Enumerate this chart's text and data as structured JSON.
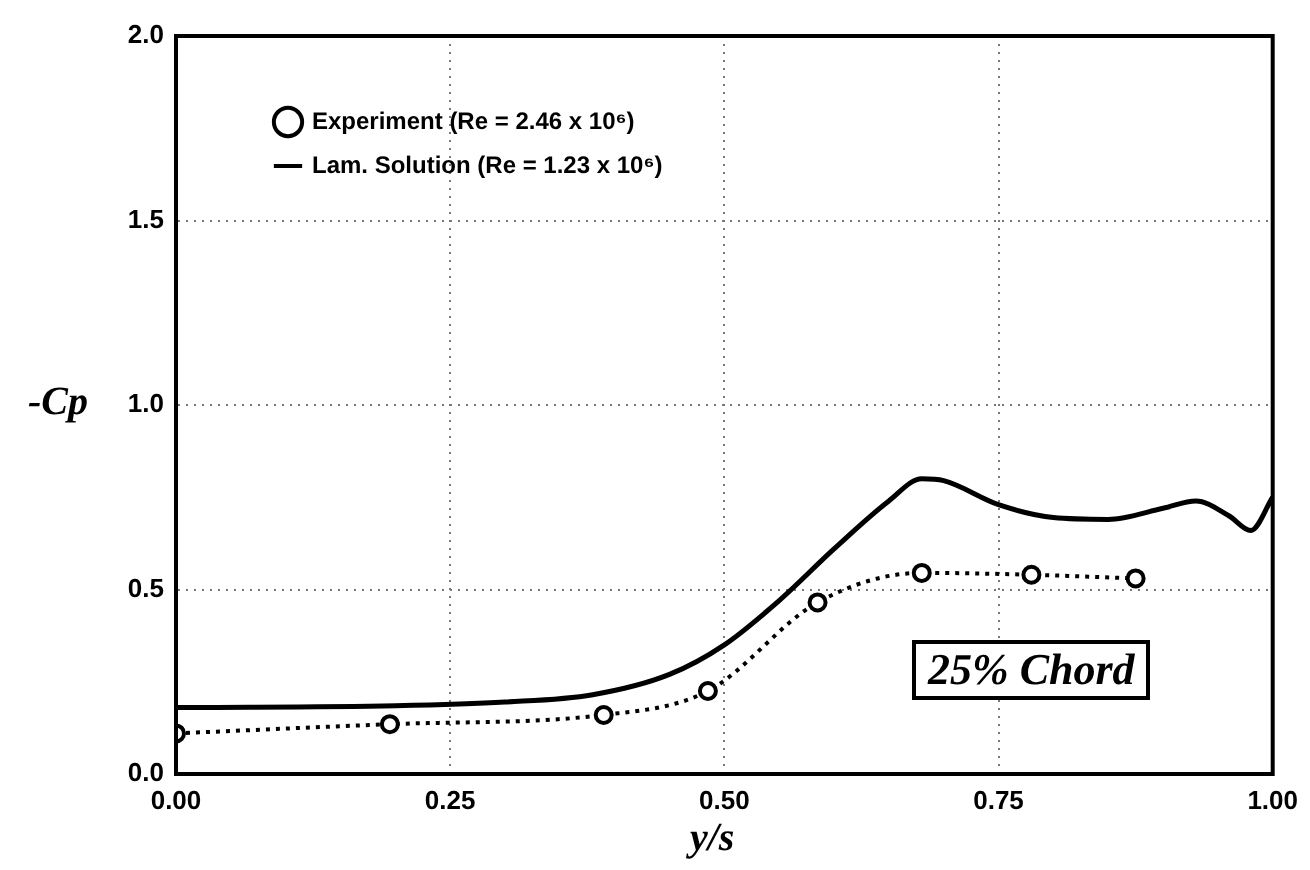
{
  "chart_data": {
    "type": "line",
    "xlabel": "y/s",
    "ylabel": "-Cp",
    "xlim": [
      0,
      1
    ],
    "xticks": [
      {
        "value": 0,
        "label": "0.00"
      },
      0.25,
      {
        "value": 0.5,
        "label": "0.50"
      },
      0.75,
      {
        "value": 1,
        "label": "1.00"
      }
    ],
    "ylim": [
      0,
      2
    ],
    "yticks": [
      {
        "value": 0,
        "label": "0.0"
      },
      0.5,
      {
        "value": 1,
        "label": "1.0"
      },
      1.5,
      {
        "value": 2,
        "label": "2.0"
      }
    ],
    "grid": true,
    "legend": "top left",
    "annotations": [
      "25% Chord"
    ],
    "series": [
      {
        "name": "Experiment (Re = 2.46 x 10⁶)",
        "color": "#000000",
        "line_style": "dotted",
        "marker": "circle",
        "x": [
          0,
          0.195,
          0.39,
          0.485,
          0.585,
          0.68,
          0.78,
          0.875
        ],
        "values": [
          0.11,
          0.135,
          0.16,
          0.225,
          0.465,
          0.545,
          0.54,
          0.53
        ]
      },
      {
        "name": "Lam. Solution (Re = 1.23 x 10⁶)",
        "color": "#000000",
        "line_style": "solid",
        "marker": "none",
        "x": [
          0,
          0.2,
          0.3,
          0.38,
          0.45,
          0.5,
          0.55,
          0.6,
          0.65,
          0.68,
          0.7,
          0.75,
          0.8,
          0.85,
          0.9,
          0.93,
          0.96,
          0.98,
          1
        ],
        "values": [
          0.18,
          0.185,
          0.195,
          0.215,
          0.27,
          0.35,
          0.47,
          0.61,
          0.74,
          0.8,
          0.795,
          0.73,
          0.695,
          0.69,
          0.72,
          0.74,
          0.7,
          0.66,
          0.75
        ]
      }
    ]
  }
}
